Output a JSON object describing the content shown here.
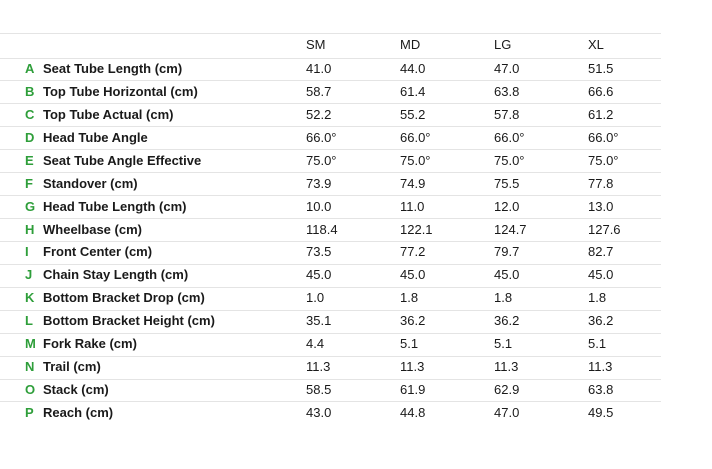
{
  "table": {
    "columns": [
      "SM",
      "MD",
      "LG",
      "XL"
    ],
    "rows": [
      {
        "letter": "A",
        "label": "Seat Tube Length (cm)",
        "values": [
          "41.0",
          "44.0",
          "47.0",
          "51.5"
        ]
      },
      {
        "letter": "B",
        "label": "Top Tube Horizontal (cm)",
        "values": [
          "58.7",
          "61.4",
          "63.8",
          "66.6"
        ]
      },
      {
        "letter": "C",
        "label": "Top Tube Actual (cm)",
        "values": [
          "52.2",
          "55.2",
          "57.8",
          "61.2"
        ]
      },
      {
        "letter": "D",
        "label": "Head Tube Angle",
        "values": [
          "66.0°",
          "66.0°",
          "66.0°",
          "66.0°"
        ]
      },
      {
        "letter": "E",
        "label": "Seat Tube Angle Effective",
        "values": [
          "75.0°",
          "75.0°",
          "75.0°",
          "75.0°"
        ]
      },
      {
        "letter": "F",
        "label": "Standover (cm)",
        "values": [
          "73.9",
          "74.9",
          "75.5",
          "77.8"
        ]
      },
      {
        "letter": "G",
        "label": "Head Tube Length (cm)",
        "values": [
          "10.0",
          "11.0",
          "12.0",
          "13.0"
        ]
      },
      {
        "letter": "H",
        "label": "Wheelbase (cm)",
        "values": [
          "118.4",
          "122.1",
          "124.7",
          "127.6"
        ]
      },
      {
        "letter": "I",
        "label": "Front Center (cm)",
        "values": [
          "73.5",
          "77.2",
          "79.7",
          "82.7"
        ]
      },
      {
        "letter": "J",
        "label": "Chain Stay Length (cm)",
        "values": [
          "45.0",
          "45.0",
          "45.0",
          "45.0"
        ]
      },
      {
        "letter": "K",
        "label": "Bottom Bracket Drop (cm)",
        "values": [
          "1.0",
          "1.8",
          "1.8",
          "1.8"
        ]
      },
      {
        "letter": "L",
        "label": "Bottom Bracket Height (cm)",
        "values": [
          "35.1",
          "36.2",
          "36.2",
          "36.2"
        ]
      },
      {
        "letter": "M",
        "label": "Fork Rake (cm)",
        "values": [
          "4.4",
          "5.1",
          "5.1",
          "5.1"
        ]
      },
      {
        "letter": "N",
        "label": "Trail (cm)",
        "values": [
          "11.3",
          "11.3",
          "11.3",
          "11.3"
        ]
      },
      {
        "letter": "O",
        "label": "Stack (cm)",
        "values": [
          "58.5",
          "61.9",
          "62.9",
          "63.8"
        ]
      },
      {
        "letter": "P",
        "label": "Reach (cm)",
        "values": [
          "43.0",
          "44.8",
          "47.0",
          "49.5"
        ]
      }
    ]
  }
}
